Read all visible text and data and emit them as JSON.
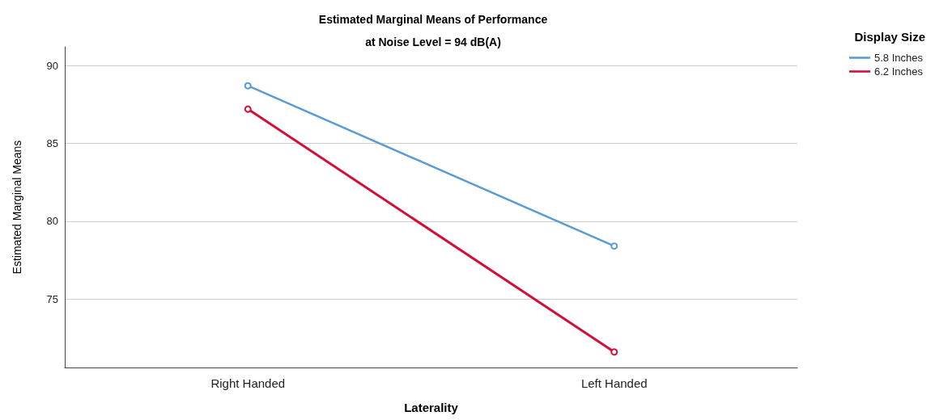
{
  "chart_data": {
    "type": "line",
    "title": "Estimated Marginal Means of Performance",
    "subtitle": "at Noise Level = 94 dB(A)",
    "xlabel": "Laterality",
    "ylabel": "Estimated Marginal Means",
    "legend_title": "Display Size",
    "categories": [
      "Right Handed",
      "Left Handed"
    ],
    "series": [
      {
        "name": "5.8 Inches",
        "color": "#5b9bd5",
        "values": [
          88.7,
          78.4
        ]
      },
      {
        "name": "6.2 Inches",
        "color": "#d0103a",
        "values": [
          87.2,
          71.6
        ]
      }
    ],
    "ylim": [
      70.6,
      91.2
    ],
    "yticks": [
      75,
      80,
      85,
      90
    ],
    "grid": "y",
    "legend": "top right",
    "marker": "circle",
    "line_style": "solid"
  }
}
